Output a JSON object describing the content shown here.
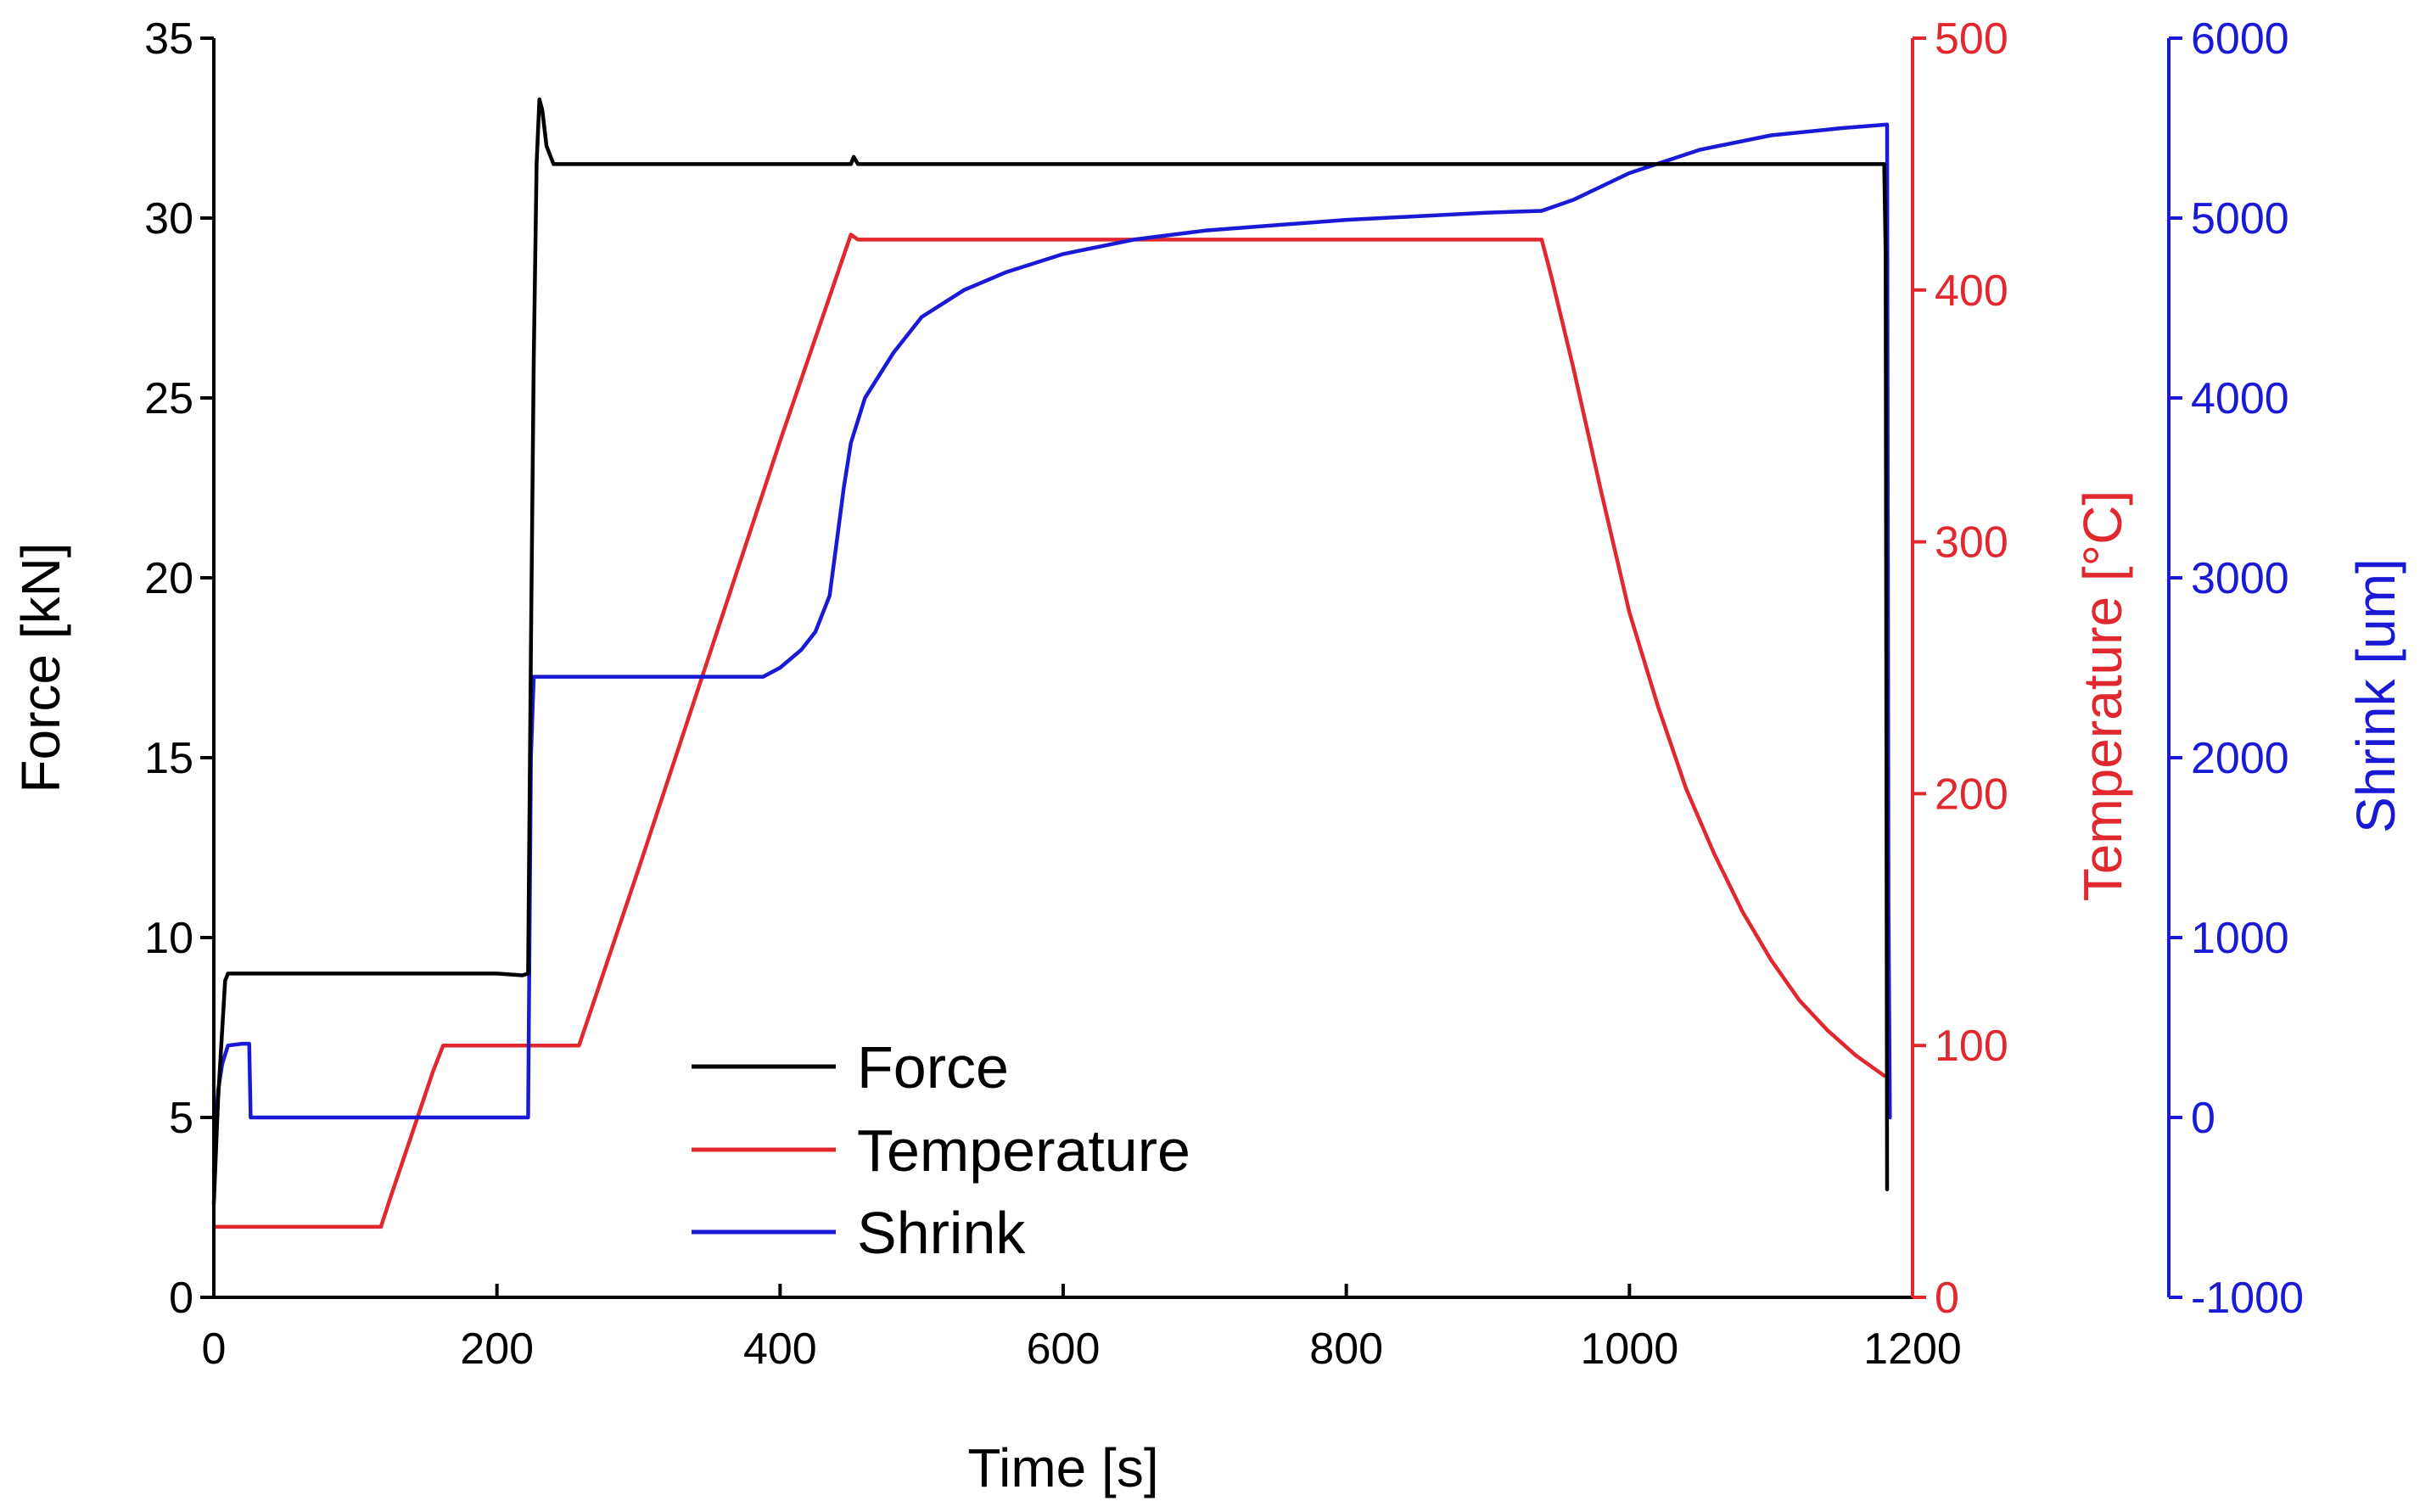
{
  "chart_data": {
    "type": "line",
    "x_axis": {
      "label": "Time [s]",
      "range": [
        0,
        1200
      ],
      "ticks": [
        0,
        200,
        400,
        600,
        800,
        1000,
        1200
      ],
      "tick_labels": [
        "0",
        "200",
        "400",
        "600",
        "800",
        "1000",
        "1200"
      ]
    },
    "y_axes": [
      {
        "id": "force",
        "label": "Force [kN]",
        "side": "left",
        "color": "#000000",
        "range": [
          0,
          35
        ],
        "ticks": [
          0,
          5,
          10,
          15,
          20,
          25,
          30,
          35
        ],
        "tick_labels": [
          "0",
          "5",
          "10",
          "15",
          "20",
          "25",
          "30",
          "35"
        ]
      },
      {
        "id": "temperature",
        "label": "Temperature [°C]",
        "side": "right",
        "color": "#e0282e",
        "range": [
          0,
          500
        ],
        "ticks": [
          0,
          100,
          200,
          300,
          400,
          500
        ],
        "tick_labels": [
          "0",
          "100",
          "200",
          "300",
          "400",
          "500"
        ]
      },
      {
        "id": "shrink",
        "label": "Shrink [um]",
        "side": "right-outer",
        "color": "#1a1ad6",
        "range": [
          -1000,
          6000
        ],
        "ticks": [
          -1000,
          0,
          1000,
          2000,
          3000,
          4000,
          5000,
          6000
        ],
        "tick_labels": [
          "-1000",
          "0",
          "1000",
          "2000",
          "3000",
          "4000",
          "5000",
          "6000"
        ]
      }
    ],
    "series": [
      {
        "name": "Force",
        "axis": "force",
        "color": "#000000",
        "points": [
          [
            0,
            2.6
          ],
          [
            3,
            5.5
          ],
          [
            8,
            8.8
          ],
          [
            10,
            9.0
          ],
          [
            100,
            9.0
          ],
          [
            200,
            9.0
          ],
          [
            218,
            8.95
          ],
          [
            222,
            9.0
          ],
          [
            224,
            18.0
          ],
          [
            226,
            26.0
          ],
          [
            228,
            31.5
          ],
          [
            230,
            33.3
          ],
          [
            232,
            33.0
          ],
          [
            235,
            32.0
          ],
          [
            240,
            31.5
          ],
          [
            300,
            31.5
          ],
          [
            400,
            31.5
          ],
          [
            450,
            31.5
          ],
          [
            452,
            31.7
          ],
          [
            455,
            31.5
          ],
          [
            600,
            31.5
          ],
          [
            800,
            31.5
          ],
          [
            1000,
            31.5
          ],
          [
            1180,
            31.5
          ],
          [
            1181,
            29.0
          ],
          [
            1182,
            3.0
          ]
        ]
      },
      {
        "name": "Temperature",
        "axis": "temperature",
        "color": "#e0282e",
        "points": [
          [
            0,
            28
          ],
          [
            60,
            28
          ],
          [
            118,
            28
          ],
          [
            125,
            40
          ],
          [
            140,
            65
          ],
          [
            155,
            90
          ],
          [
            162,
            100
          ],
          [
            200,
            100
          ],
          [
            258,
            100
          ],
          [
            300,
            170
          ],
          [
            350,
            255
          ],
          [
            400,
            340
          ],
          [
            450,
            422
          ],
          [
            455,
            420
          ],
          [
            600,
            420
          ],
          [
            800,
            420
          ],
          [
            938,
            420
          ],
          [
            945,
            405
          ],
          [
            960,
            370
          ],
          [
            980,
            320
          ],
          [
            1000,
            272
          ],
          [
            1020,
            235
          ],
          [
            1040,
            202
          ],
          [
            1060,
            176
          ],
          [
            1080,
            153
          ],
          [
            1100,
            134
          ],
          [
            1120,
            118
          ],
          [
            1140,
            106
          ],
          [
            1160,
            96
          ],
          [
            1180,
            88
          ]
        ]
      },
      {
        "name": "Shrink",
        "axis": "shrink",
        "color": "#1a1ad6",
        "points": [
          [
            0,
            -300
          ],
          [
            3,
            150
          ],
          [
            6,
            300
          ],
          [
            10,
            400
          ],
          [
            20,
            410
          ],
          [
            25,
            410
          ],
          [
            26,
            0
          ],
          [
            100,
            0
          ],
          [
            200,
            0
          ],
          [
            220,
            0
          ],
          [
            222,
            0
          ],
          [
            224,
            2000
          ],
          [
            226,
            2450
          ],
          [
            230,
            2450
          ],
          [
            300,
            2450
          ],
          [
            388,
            2450
          ],
          [
            400,
            2500
          ],
          [
            415,
            2600
          ],
          [
            425,
            2700
          ],
          [
            435,
            2900
          ],
          [
            440,
            3200
          ],
          [
            445,
            3500
          ],
          [
            450,
            3750
          ],
          [
            460,
            4000
          ],
          [
            480,
            4250
          ],
          [
            500,
            4450
          ],
          [
            530,
            4600
          ],
          [
            560,
            4700
          ],
          [
            600,
            4800
          ],
          [
            650,
            4880
          ],
          [
            700,
            4930
          ],
          [
            800,
            4990
          ],
          [
            900,
            5030
          ],
          [
            938,
            5040
          ],
          [
            960,
            5100
          ],
          [
            1000,
            5250
          ],
          [
            1050,
            5380
          ],
          [
            1100,
            5460
          ],
          [
            1150,
            5500
          ],
          [
            1182,
            5520
          ],
          [
            1183,
            1200
          ],
          [
            1184,
            0
          ]
        ]
      }
    ],
    "legend": {
      "position": "bottom-center",
      "entries": [
        "Force",
        "Temperature",
        "Shrink"
      ]
    },
    "grid": false
  }
}
